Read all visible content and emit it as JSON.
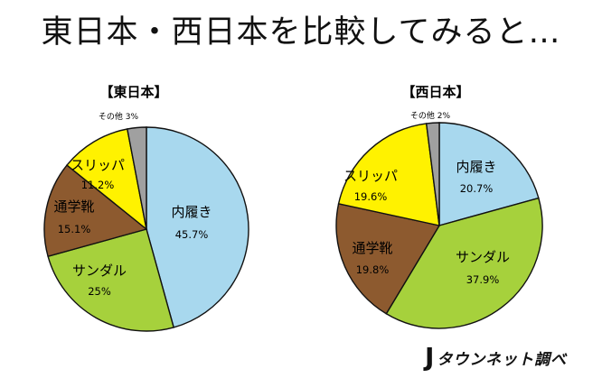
{
  "title": "東日本・西日本を比較してみると…",
  "logo": {
    "mark": "J",
    "text": "タウンネット調べ"
  },
  "chart_data": [
    {
      "type": "pie",
      "title": "【東日本】",
      "slices": [
        {
          "name": "内履き",
          "value": 45.7,
          "label": "45.7%",
          "color": "#a8d8ee"
        },
        {
          "name": "サンダル",
          "value": 25.0,
          "label": "25%",
          "color": "#a6d13c"
        },
        {
          "name": "通学靴",
          "value": 15.1,
          "label": "15.1%",
          "color": "#8d5a2f"
        },
        {
          "name": "スリッパ",
          "value": 11.2,
          "label": "11.2%",
          "color": "#fff200"
        },
        {
          "name": "その他",
          "value": 3.0,
          "label": "3%",
          "color": "#a0a0a0"
        }
      ]
    },
    {
      "type": "pie",
      "title": "【西日本】",
      "slices": [
        {
          "name": "内履き",
          "value": 20.7,
          "label": "20.7%",
          "color": "#a8d8ee"
        },
        {
          "name": "サンダル",
          "value": 37.9,
          "label": "37.9%",
          "color": "#a6d13c"
        },
        {
          "name": "通学靴",
          "value": 19.8,
          "label": "19.8%",
          "color": "#8d5a2f"
        },
        {
          "name": "スリッパ",
          "value": 19.6,
          "label": "19.6%",
          "color": "#fff200"
        },
        {
          "name": "その他",
          "value": 2.0,
          "label": "2%",
          "color": "#a0a0a0"
        }
      ]
    }
  ]
}
